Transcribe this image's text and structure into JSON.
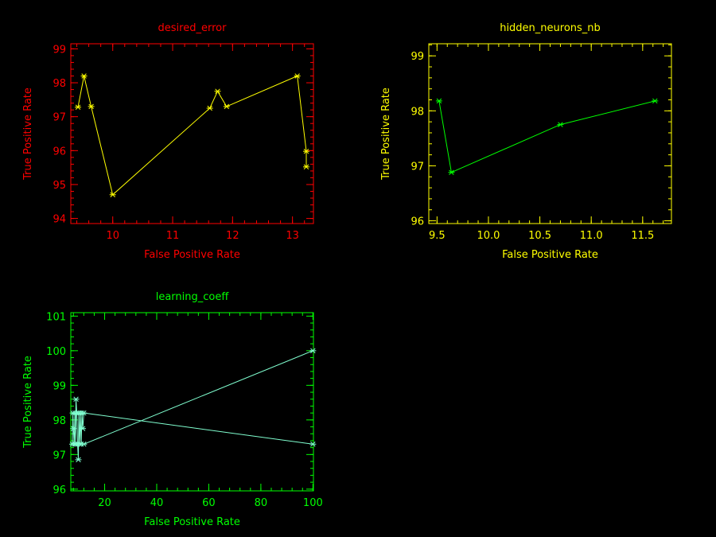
{
  "colors": {
    "background": "#000000",
    "red": "#ff0000",
    "yellow": "#ffff00",
    "green": "#00ff00",
    "cyan": "#80ffd0"
  },
  "chart_data": [
    {
      "type": "line",
      "title": "desired_error",
      "xlabel": "False Positive Rate",
      "ylabel": "True Positive Rate",
      "axis_color": "#ff0000",
      "series_color": "#ffff00",
      "marker": "asterisk",
      "xlim": [
        9.3,
        13.35
      ],
      "ylim": [
        93.85,
        99.15
      ],
      "xticks": [
        10,
        11,
        12,
        13
      ],
      "xtick_labels": [
        "10",
        "11",
        "12",
        "13"
      ],
      "yticks": [
        94,
        95,
        96,
        97,
        98,
        99
      ],
      "ytick_labels": [
        "94",
        "95",
        "96",
        "97",
        "98",
        "99"
      ],
      "series": [
        {
          "x": [
            9.42,
            9.52,
            9.64,
            10.0,
            11.62,
            11.75,
            11.9,
            13.08,
            13.23,
            13.23
          ],
          "y": [
            97.28,
            98.2,
            97.3,
            94.7,
            97.25,
            97.75,
            97.3,
            98.2,
            95.98,
            95.52
          ]
        }
      ]
    },
    {
      "type": "line",
      "title": "hidden_neurons_nb",
      "xlabel": "False Positive Rate",
      "ylabel": "True Positive Rate",
      "axis_color": "#ffff00",
      "series_color": "#00ff00",
      "marker": "asterisk",
      "xlim": [
        9.42,
        11.78
      ],
      "ylim": [
        95.95,
        99.22
      ],
      "xticks": [
        9.5,
        10.0,
        10.5,
        11.0,
        11.5
      ],
      "xtick_labels": [
        "9.5",
        "10.0",
        "10.5",
        "11.0",
        "11.5"
      ],
      "yticks": [
        96,
        97,
        98,
        99
      ],
      "ytick_labels": [
        "96",
        "97",
        "98",
        "99"
      ],
      "series": [
        {
          "x": [
            9.52,
            9.64,
            10.7,
            11.62
          ],
          "y": [
            98.18,
            96.88,
            97.75,
            98.18
          ]
        }
      ]
    },
    {
      "type": "line",
      "title": "learning_coeff",
      "xlabel": "False Positive Rate",
      "ylabel": "True Positive Rate",
      "axis_color": "#00ff00",
      "series_color": "#80ffd0",
      "marker": "asterisk",
      "xlim": [
        7,
        100.2
      ],
      "ylim": [
        95.95,
        101.1
      ],
      "xticks": [
        20,
        40,
        60,
        80,
        100
      ],
      "xtick_labels": [
        "20",
        "40",
        "60",
        "80",
        "100"
      ],
      "yticks": [
        96,
        97,
        98,
        99,
        100,
        101
      ],
      "ytick_labels": [
        "96",
        "97",
        "98",
        "99",
        "100",
        "101"
      ],
      "series": [
        {
          "x": [
            7.6,
            7.8,
            8.0,
            8.3,
            8.6,
            8.8,
            9.0,
            9.3,
            9.6,
            9.9,
            10.1,
            10.4,
            10.7,
            11.0,
            11.3,
            11.6,
            12.0,
            100
          ],
          "y": [
            97.3,
            98.2,
            97.75,
            97.3,
            98.2,
            97.3,
            98.6,
            98.2,
            97.3,
            96.85,
            98.2,
            97.3,
            98.2,
            97.3,
            98.2,
            97.75,
            98.2,
            97.3
          ]
        },
        {
          "x": [
            12.0,
            100
          ],
          "y": [
            97.3,
            100
          ]
        }
      ]
    }
  ]
}
